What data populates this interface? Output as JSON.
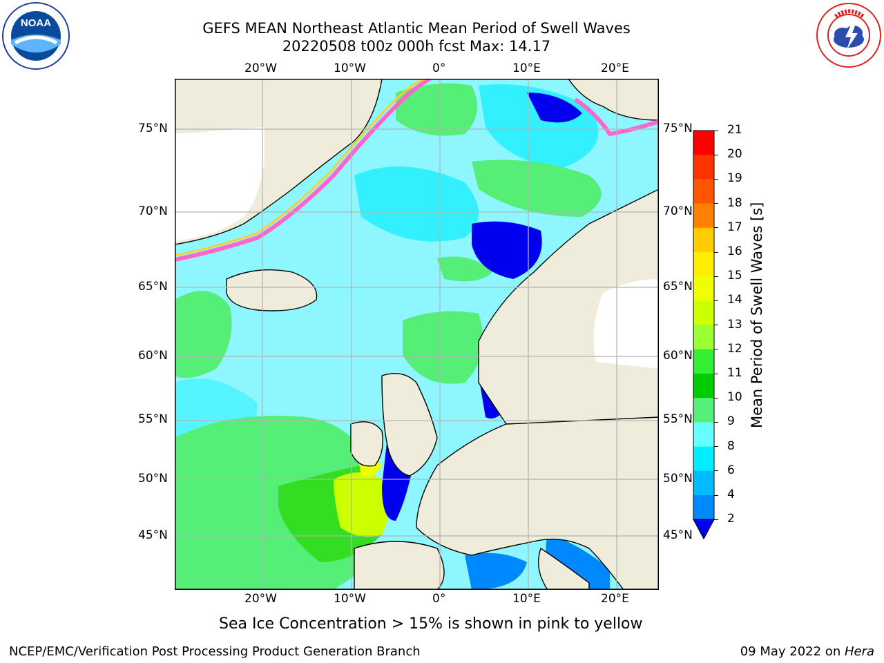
{
  "header": {
    "title_line1": "GEFS MEAN Northeast Atlantic Mean Period of Swell Waves",
    "title_line2": "20220508 t00z 000h fcst   Max: 14.17"
  },
  "logos": {
    "left_text": "NOAA",
    "right_text": "NATIONAL WEATHER SERVICE"
  },
  "map": {
    "lon_ticks": [
      "20°W",
      "10°W",
      "0°",
      "10°E",
      "20°E"
    ],
    "lat_ticks_left": [
      "75°N",
      "70°N",
      "65°N",
      "60°N",
      "55°N",
      "50°N",
      "45°N"
    ],
    "lat_ticks_right": [
      "75°N",
      "70°N",
      "65°N",
      "60°N",
      "55°N",
      "50°N",
      "45°N"
    ],
    "colors": {
      "land": "#efecdc",
      "ice_free_white": "#ffffff",
      "grid": "#b3b3b3",
      "coast": "#000000"
    },
    "ice_note": "Sea Ice Concentration > 15% is shown in pink to yellow"
  },
  "colorbar": {
    "title": "Mean Period of Swell Waves [s]",
    "labels": [
      "21",
      "20",
      "19",
      "18",
      "17",
      "16",
      "15",
      "14",
      "13",
      "12",
      "11",
      "10",
      "9",
      "8",
      "6",
      "4",
      "2"
    ],
    "colors": [
      "#ff0000",
      "#ff3300",
      "#ff5500",
      "#ff8000",
      "#ffaa00",
      "#ffcc00",
      "#ffee00",
      "#eeff00",
      "#ccff00",
      "#99ff33",
      "#33ee33",
      "#00cc00",
      "#55ee77",
      "#aaffff",
      "#66ffff",
      "#00eeff",
      "#00bbff",
      "#0088ff",
      "#0000ee"
    ]
  },
  "footer": {
    "left": "NCEP/EMC/Verification Post Processing Product Generation Branch",
    "right_date": "09 May 2022 on ",
    "right_host": "Hera"
  }
}
